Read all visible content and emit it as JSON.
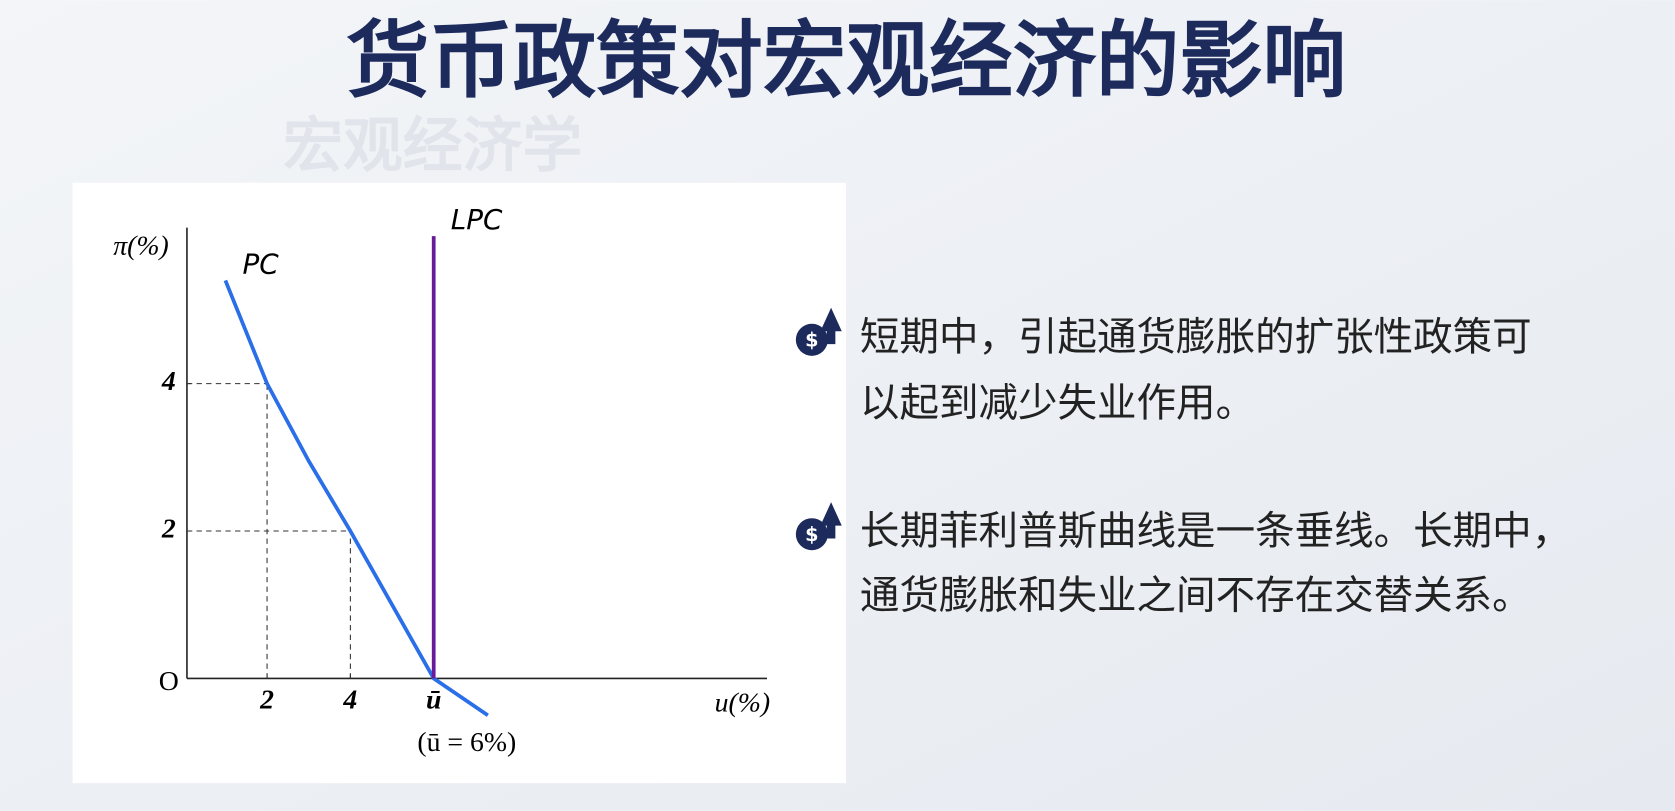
{
  "title": "货币政策对宏观经济的影响",
  "watermark": "宏观经济学",
  "bullets": [
    [
      "短期中，引起通货膨胀的扩张性政策可",
      "以起到减少失业作用。"
    ],
    [
      "长期菲利普斯曲线是一条垂线。长期中，",
      "通货膨胀和失业之间不存在交替关系。"
    ]
  ],
  "chart_data": {
    "type": "line",
    "x_label": "u(%)",
    "y_label": "π(%)",
    "origin_label": "O",
    "annotation": "(ū = 6%)",
    "xlim": [
      0,
      14
    ],
    "ylim": [
      0,
      6
    ],
    "xticks": [
      2,
      4,
      {
        "value": 6,
        "label": "ū"
      }
    ],
    "yticks": [
      2,
      4
    ],
    "series": [
      {
        "name": "PC",
        "color": "#2a6ee8",
        "x": [
          1,
          2,
          3,
          4,
          5,
          6,
          7.3
        ],
        "values": [
          5.4,
          4,
          2.95,
          2,
          1,
          0,
          -0.5
        ]
      },
      {
        "name": "LPC",
        "color": "#6a1b9a",
        "x": [
          6,
          6
        ],
        "values": [
          0,
          6
        ]
      }
    ]
  }
}
